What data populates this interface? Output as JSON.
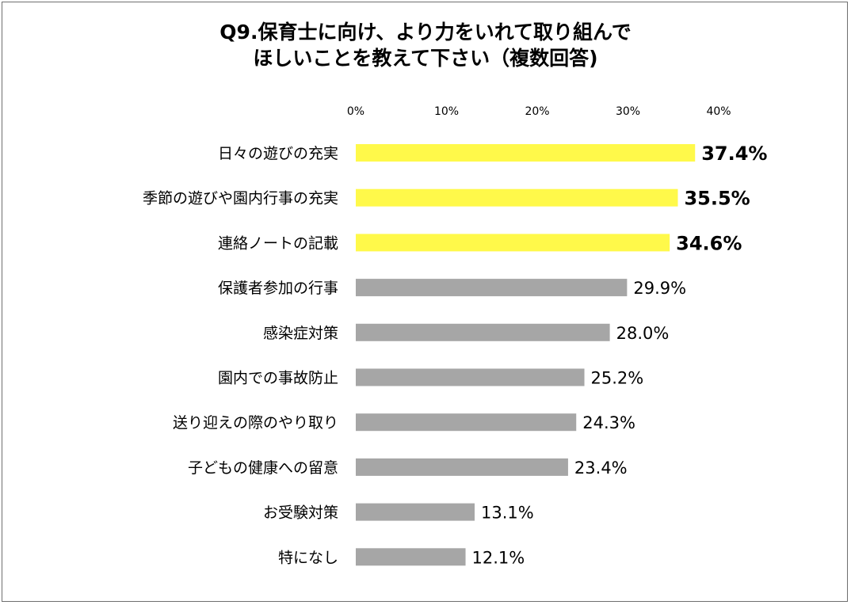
{
  "title": {
    "line1": "Q9.保育士に向け、より力をいれて取り組んで",
    "line2": "ほしいことを教えて下さい（複数回答)"
  },
  "colors": {
    "highlight": "#FFF94A",
    "normal": "#A6A6A6"
  },
  "chart_data": {
    "type": "bar",
    "orientation": "horizontal",
    "title": "Q9.保育士に向け、より力をいれて取り組んでほしいことを教えて下さい（複数回答)",
    "xlim": [
      0,
      40
    ],
    "x_ticks": [
      "0%",
      "10%",
      "20%",
      "30%",
      "40%"
    ],
    "x_tick_values": [
      0,
      10,
      20,
      30,
      40
    ],
    "grid": false,
    "categories": [
      "日々の遊びの充実",
      "季節の遊びや園内行事の充実",
      "連絡ノートの記載",
      "保護者参加の行事",
      "感染症対策",
      "園内での事故防止",
      "送り迎えの際のやり取り",
      "子どもの健康への留意",
      "お受験対策",
      "特になし"
    ],
    "values": [
      37.4,
      35.5,
      34.6,
      29.9,
      28.0,
      25.2,
      24.3,
      23.4,
      13.1,
      12.1
    ],
    "value_labels": [
      "37.4%",
      "35.5%",
      "34.6%",
      "29.9%",
      "28.0%",
      "25.2%",
      "24.3%",
      "23.4%",
      "13.1%",
      "12.1%"
    ],
    "highlighted": [
      true,
      true,
      true,
      false,
      false,
      false,
      false,
      false,
      false,
      false
    ]
  }
}
